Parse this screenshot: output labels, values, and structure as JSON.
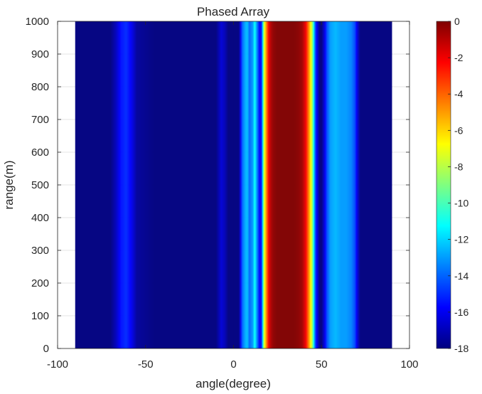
{
  "chart_data": {
    "type": "heatmap",
    "title": "Phased Array",
    "xlabel": "angle(degree)",
    "ylabel": "range(m)",
    "xlim": [
      -100,
      100
    ],
    "ylim": [
      0,
      1000
    ],
    "x_data_range": [
      -90,
      90
    ],
    "xticks": [
      -100,
      -50,
      0,
      50,
      100
    ],
    "yticks": [
      0,
      100,
      200,
      300,
      400,
      500,
      600,
      700,
      800,
      900,
      1000
    ],
    "colormap": "jet",
    "colorbar": {
      "min": -18,
      "max": 0,
      "ticks": [
        0,
        -2,
        -4,
        -6,
        -8,
        -10,
        -12,
        -14,
        -16,
        -18
      ]
    },
    "grid": true,
    "pattern": {
      "description_values": "beam power (dB) vs angle, constant over range",
      "angles": [
        -90,
        -80,
        -70,
        -67,
        -64,
        -61,
        -58,
        -55,
        -45,
        -20,
        -10,
        -7,
        -5,
        -3,
        0,
        3,
        5,
        7,
        8,
        9,
        11,
        12,
        14,
        15,
        16,
        17,
        18,
        19,
        20,
        21,
        22,
        23,
        25,
        28,
        31,
        34,
        37,
        39,
        41,
        42,
        43,
        44,
        45,
        46,
        47,
        49,
        50,
        52,
        53,
        55,
        58,
        61,
        64,
        67,
        69,
        70,
        72,
        75,
        80,
        90
      ],
      "values": [
        -18,
        -18,
        -18,
        -17,
        -15.5,
        -15,
        -16,
        -17.5,
        -18,
        -18,
        -18,
        -16.5,
        -17,
        -18,
        -18,
        -18,
        -14,
        -12.5,
        -12.5,
        -14,
        -13,
        -11,
        -14.5,
        -16,
        -15,
        -9,
        -6,
        -4,
        -2,
        -1,
        -0.5,
        -0.2,
        0,
        0,
        0,
        0,
        -0.2,
        -0.6,
        -2,
        -3.5,
        -5,
        -7,
        -9,
        -13,
        -15.5,
        -18,
        -18,
        -16,
        -14.5,
        -13,
        -12.5,
        -13,
        -13,
        -13.5,
        -14.5,
        -16,
        -18,
        -18,
        -18,
        -18
      ]
    }
  }
}
